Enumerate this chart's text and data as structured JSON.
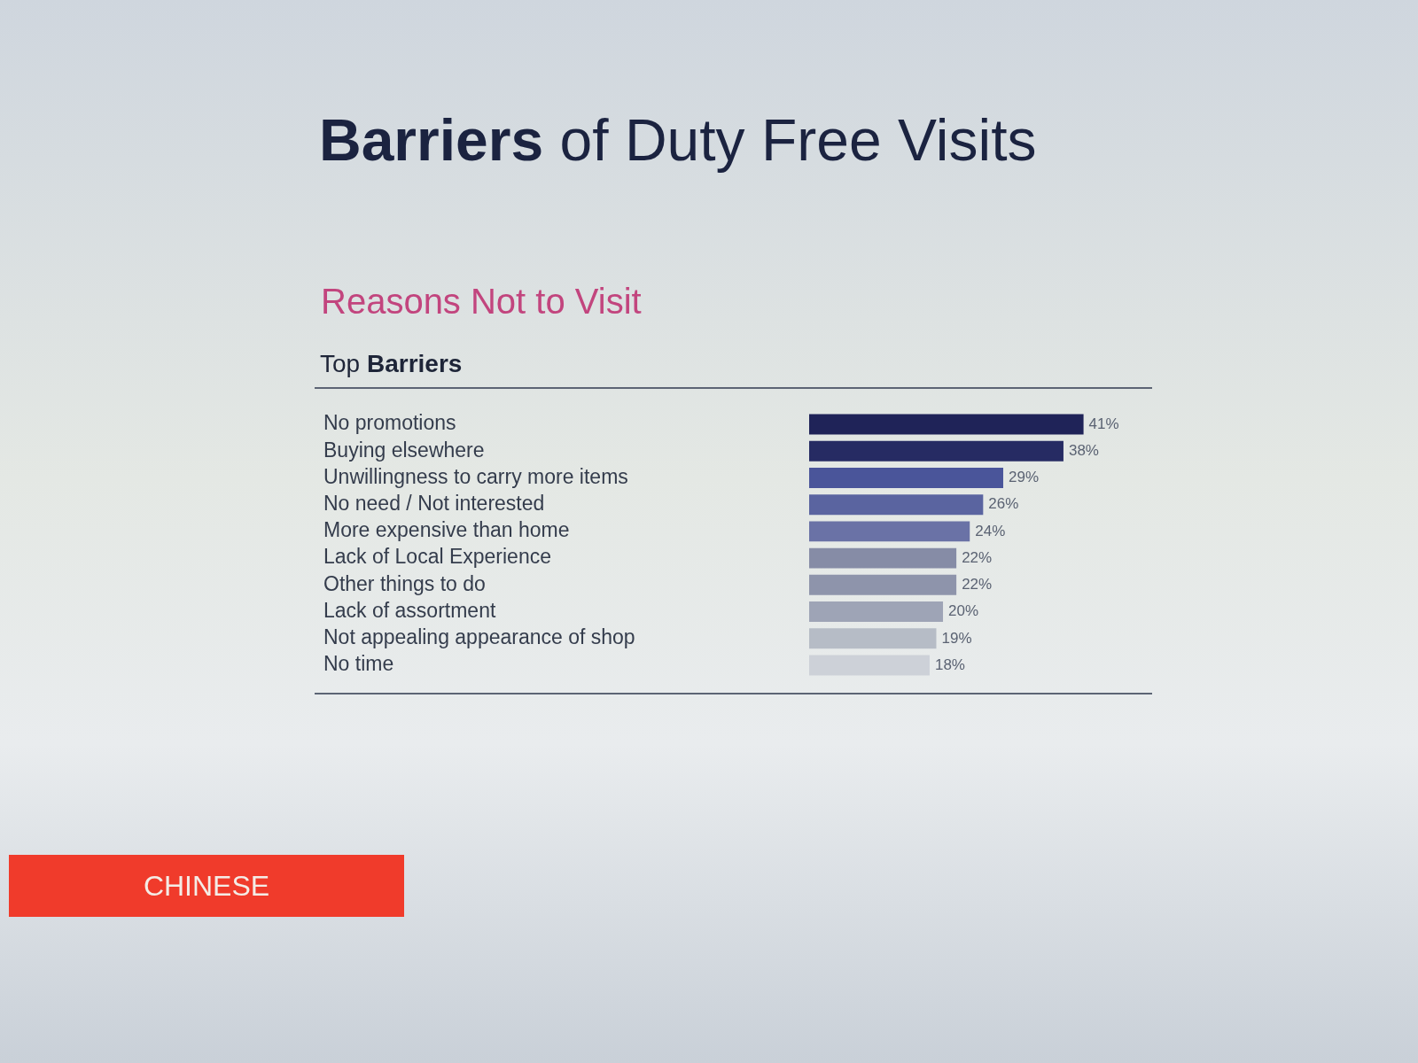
{
  "chart_data": {
    "type": "bar",
    "orientation": "horizontal",
    "title": "Barriers of Duty Free Visits",
    "subtitle": "Reasons Not to Visit",
    "annotations": [
      "Top Barriers",
      "CHINESE"
    ],
    "categories": [
      "No promotions",
      "Buying elsewhere",
      "Unwillingness to carry more items",
      "No need / Not interested",
      "More expensive than home",
      "Lack of Local Experience",
      "Other things to do",
      "Lack of assortment",
      "Not appealing appearance of shop",
      "No time"
    ],
    "values": [
      41,
      38,
      29,
      26,
      24,
      22,
      22,
      20,
      19,
      18
    ],
    "colors": [
      "#1f2358",
      "#262b63",
      "#4a559a",
      "#5a64a0",
      "#6a72a6",
      "#868ca6",
      "#8e94ab",
      "#9ea4b6",
      "#b6bcc6",
      "#cdd1d8"
    ],
    "value_labels": [
      "41%",
      "38%",
      "29%",
      "26%",
      "24%",
      "22%",
      "22%",
      "20%",
      "19%",
      "18%"
    ],
    "grid": false,
    "legend": false,
    "tick_labels": "y"
  }
}
